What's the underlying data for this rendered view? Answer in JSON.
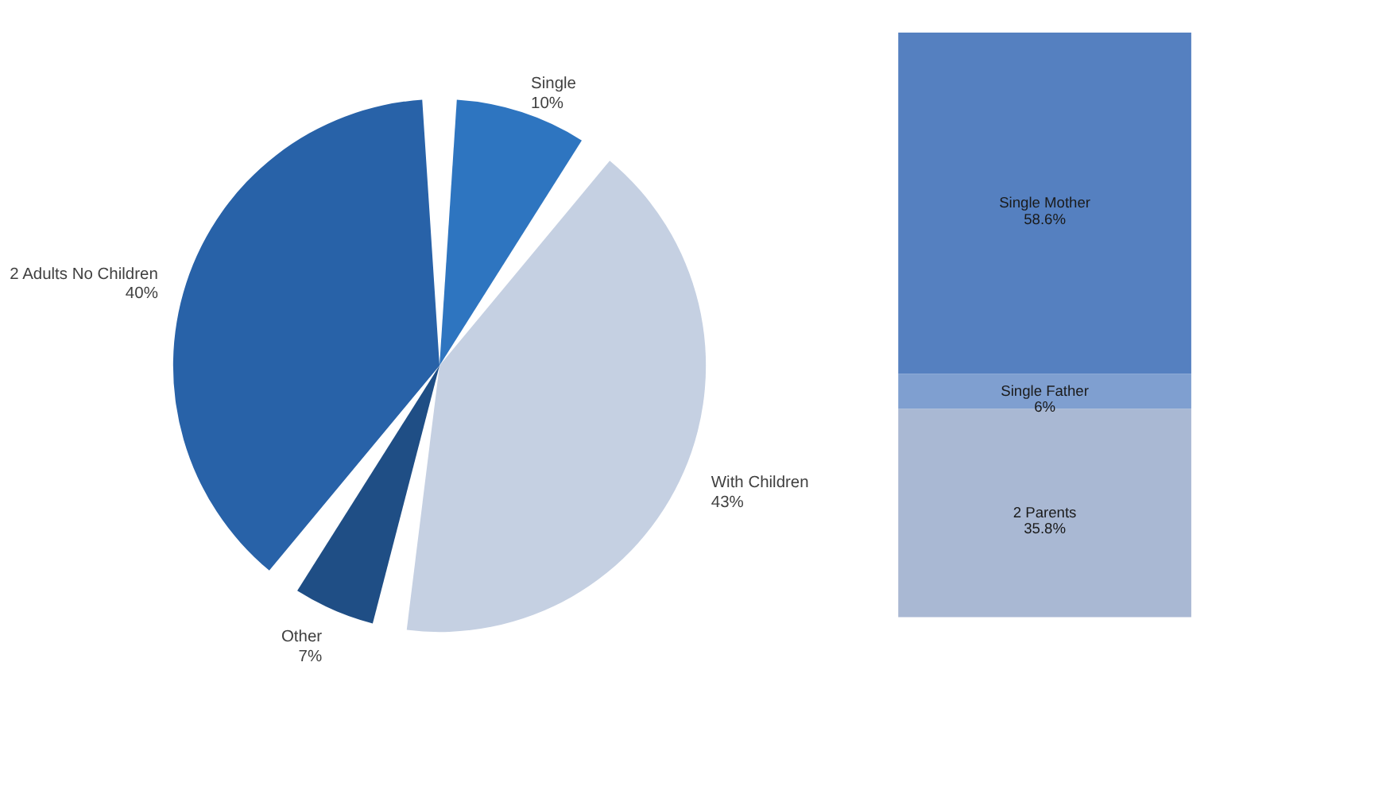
{
  "chart_data": [
    {
      "type": "pie",
      "categories": [
        "Single",
        "With Children",
        "Other",
        "2 Adults No Children"
      ],
      "values": [
        10,
        43,
        7,
        40
      ],
      "value_labels": [
        "10%",
        "43%",
        "7%",
        "40%"
      ],
      "colors": [
        "#2e75c0",
        "#c5d0e2",
        "#1f4e85",
        "#2862a8"
      ]
    },
    {
      "type": "bar",
      "stacked": true,
      "categories": [
        null
      ],
      "series": [
        {
          "name": "2 Parents",
          "color": "#a9b8d3",
          "values": [
            35.8
          ],
          "value_labels": [
            "35.8%"
          ]
        },
        {
          "name": "Single Father",
          "color": "#7f9fd0",
          "values": [
            6
          ],
          "value_labels": [
            "6%"
          ]
        },
        {
          "name": "Single Mother",
          "color": "#5580c0",
          "values": [
            58.6
          ],
          "value_labels": [
            "58.6%"
          ]
        }
      ]
    }
  ]
}
